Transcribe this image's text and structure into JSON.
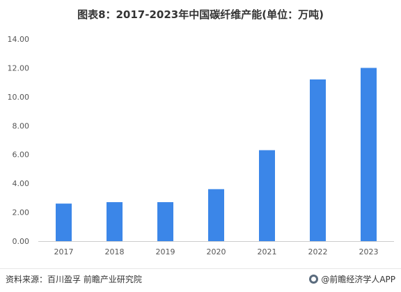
{
  "chart_data": {
    "type": "bar",
    "title": "图表8：2017-2023年中国碳纤维产能(单位：万吨)",
    "categories": [
      "2017",
      "2018",
      "2019",
      "2020",
      "2021",
      "2022",
      "2023"
    ],
    "values": [
      2.6,
      2.7,
      2.7,
      3.6,
      6.3,
      11.2,
      12.0
    ],
    "yticks": [
      "0.00",
      "2.00",
      "4.00",
      "6.00",
      "8.00",
      "10.00",
      "12.00",
      "14.00"
    ],
    "ylim": [
      0,
      14
    ],
    "xlabel": "",
    "ylabel": "",
    "grid": false,
    "bar_color": "#3b86e8"
  },
  "footer": {
    "source": "资料来源：百川盈孚 前瞻产业研究院",
    "brand": "@前瞻经济学人APP"
  }
}
